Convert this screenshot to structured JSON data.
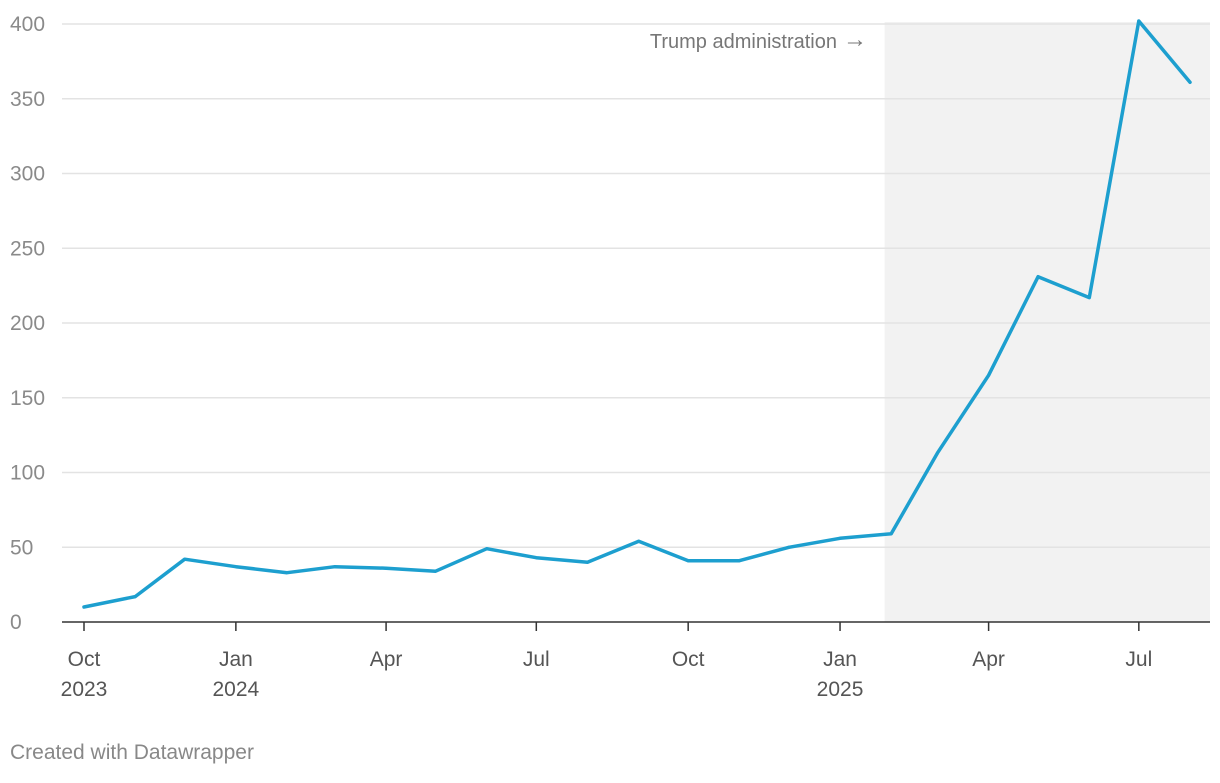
{
  "chart_data": {
    "type": "line",
    "title": "",
    "xlabel": "",
    "ylabel": "",
    "x_range": [
      "2023-10-01",
      "2025-08-01"
    ],
    "ylim": [
      0,
      400
    ],
    "y_ticks": [
      0,
      50,
      100,
      150,
      200,
      250,
      300,
      350,
      400
    ],
    "x_ticks": [
      {
        "date": "2023-10-01",
        "label": "Oct",
        "sublabel": "2023"
      },
      {
        "date": "2024-01-01",
        "label": "Jan",
        "sublabel": "2024"
      },
      {
        "date": "2024-04-01",
        "label": "Apr",
        "sublabel": ""
      },
      {
        "date": "2024-07-01",
        "label": "Jul",
        "sublabel": ""
      },
      {
        "date": "2024-10-01",
        "label": "Oct",
        "sublabel": ""
      },
      {
        "date": "2025-01-01",
        "label": "Jan",
        "sublabel": "2025"
      },
      {
        "date": "2025-04-01",
        "label": "Apr",
        "sublabel": ""
      },
      {
        "date": "2025-07-01",
        "label": "Jul",
        "sublabel": ""
      }
    ],
    "grid": true,
    "series": [
      {
        "color": "#1d9fcf",
        "points": [
          {
            "x": "2023-10-01",
            "y": 10
          },
          {
            "x": "2023-11-01",
            "y": 17
          },
          {
            "x": "2023-12-01",
            "y": 42
          },
          {
            "x": "2024-01-01",
            "y": 37
          },
          {
            "x": "2024-02-01",
            "y": 33
          },
          {
            "x": "2024-03-01",
            "y": 37
          },
          {
            "x": "2024-04-01",
            "y": 36
          },
          {
            "x": "2024-05-01",
            "y": 34
          },
          {
            "x": "2024-06-01",
            "y": 49
          },
          {
            "x": "2024-07-01",
            "y": 43
          },
          {
            "x": "2024-08-01",
            "y": 40
          },
          {
            "x": "2024-09-01",
            "y": 54
          },
          {
            "x": "2024-10-01",
            "y": 41
          },
          {
            "x": "2024-11-01",
            "y": 41
          },
          {
            "x": "2024-12-01",
            "y": 50
          },
          {
            "x": "2025-01-01",
            "y": 56
          },
          {
            "x": "2025-02-01",
            "y": 59
          },
          {
            "x": "2025-03-01",
            "y": 113
          },
          {
            "x": "2025-04-01",
            "y": 165
          },
          {
            "x": "2025-05-01",
            "y": 231
          },
          {
            "x": "2025-06-01",
            "y": 217
          },
          {
            "x": "2025-07-01",
            "y": 402
          },
          {
            "x": "2025-08-01",
            "y": 361
          }
        ]
      }
    ],
    "shaded_region": {
      "x_start": "2025-01-28",
      "x_end": "2025-08-01",
      "label": "Trump administration",
      "arrow": "→",
      "color": "#f2f2f2"
    }
  },
  "footer": {
    "credit": "Created with Datawrapper"
  }
}
